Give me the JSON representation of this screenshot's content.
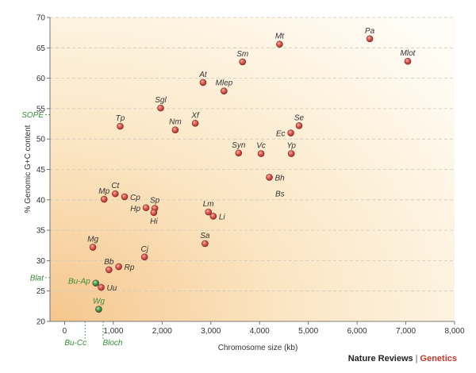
{
  "chart_data": {
    "type": "scatter",
    "xlabel": "Chromosome size (kb)",
    "ylabel": "% Genomic G+C content",
    "xlim": [
      -300,
      8000
    ],
    "ylim": [
      20,
      70
    ],
    "xticks": [
      0,
      1000,
      2000,
      3000,
      4000,
      5000,
      6000,
      7000,
      8000
    ],
    "xtick_labels": [
      "0",
      "1,000",
      "2,000",
      "3,000",
      "4,000",
      "5,000",
      "6,000",
      "7,000",
      "8,000"
    ],
    "yticks": [
      20,
      25,
      30,
      35,
      40,
      45,
      50,
      55,
      60,
      65,
      70
    ],
    "grid": "horizontal dashed",
    "colors": {
      "point": "#d9534f",
      "special_point": "#3a9a4a",
      "special_text": "#3a8a3a"
    },
    "points": [
      {
        "label": "Pa",
        "x": 6260,
        "y": 66.5
      },
      {
        "label": "Mt",
        "x": 4410,
        "y": 65.6
      },
      {
        "label": "Mlot",
        "x": 7040,
        "y": 62.8
      },
      {
        "label": "Sm",
        "x": 3650,
        "y": 62.7
      },
      {
        "label": "At",
        "x": 2840,
        "y": 59.3
      },
      {
        "label": "Mlep",
        "x": 3270,
        "y": 57.9
      },
      {
        "label": "Sgl",
        "x": 1970,
        "y": 55.1
      },
      {
        "label": "Tp",
        "x": 1140,
        "y": 52.1
      },
      {
        "label": "Xf",
        "x": 2680,
        "y": 52.6
      },
      {
        "label": "Nm",
        "x": 2270,
        "y": 51.5
      },
      {
        "label": "Se",
        "x": 4810,
        "y": 52.2
      },
      {
        "label": "Ec",
        "x": 4640,
        "y": 51.0
      },
      {
        "label": "Syn",
        "x": 3570,
        "y": 47.7
      },
      {
        "label": "Vc",
        "x": 4030,
        "y": 47.6
      },
      {
        "label": "Yp",
        "x": 4650,
        "y": 47.6
      },
      {
        "label": "Bh",
        "x": 4200,
        "y": 43.7
      },
      {
        "label": "Mp",
        "x": 810,
        "y": 40.1
      },
      {
        "label": "Ct",
        "x": 1040,
        "y": 41.0
      },
      {
        "label": "Cp",
        "x": 1230,
        "y": 40.5
      },
      {
        "label": "Hp",
        "x": 1670,
        "y": 38.7
      },
      {
        "label": "Sp",
        "x": 1850,
        "y": 38.6
      },
      {
        "label": "Hi",
        "x": 1830,
        "y": 37.9
      },
      {
        "label": "Lm",
        "x": 2950,
        "y": 38.0
      },
      {
        "label": "Li",
        "x": 3050,
        "y": 37.3
      },
      {
        "label": "Sa",
        "x": 2880,
        "y": 32.8
      },
      {
        "label": "Mg",
        "x": 580,
        "y": 32.2
      },
      {
        "label": "Cj",
        "x": 1640,
        "y": 30.6
      },
      {
        "label": "Bb",
        "x": 910,
        "y": 28.5
      },
      {
        "label": "Rp",
        "x": 1110,
        "y": 29.0
      },
      {
        "label": "Uu",
        "x": 750,
        "y": 25.6
      }
    ],
    "special_points": [
      {
        "label": "Bu-Ap",
        "x": 640,
        "y": 26.3
      },
      {
        "label": "Wg",
        "x": 700,
        "y": 22.0
      }
    ],
    "annotations": [
      {
        "label": "SOPE",
        "kind": "y-marker",
        "value": 54.0
      },
      {
        "label": "Blat",
        "kind": "y-marker",
        "value": 27.2
      },
      {
        "label": "Bu-Cc",
        "kind": "x-marker",
        "value": 420
      },
      {
        "label": "Bloch",
        "kind": "x-marker",
        "value": 790
      },
      {
        "label": "Bs",
        "kind": "text",
        "x": 4370,
        "y": 41.1
      }
    ]
  },
  "credit": {
    "source": "Nature Reviews",
    "separator": "|",
    "brand": "Genetics"
  }
}
